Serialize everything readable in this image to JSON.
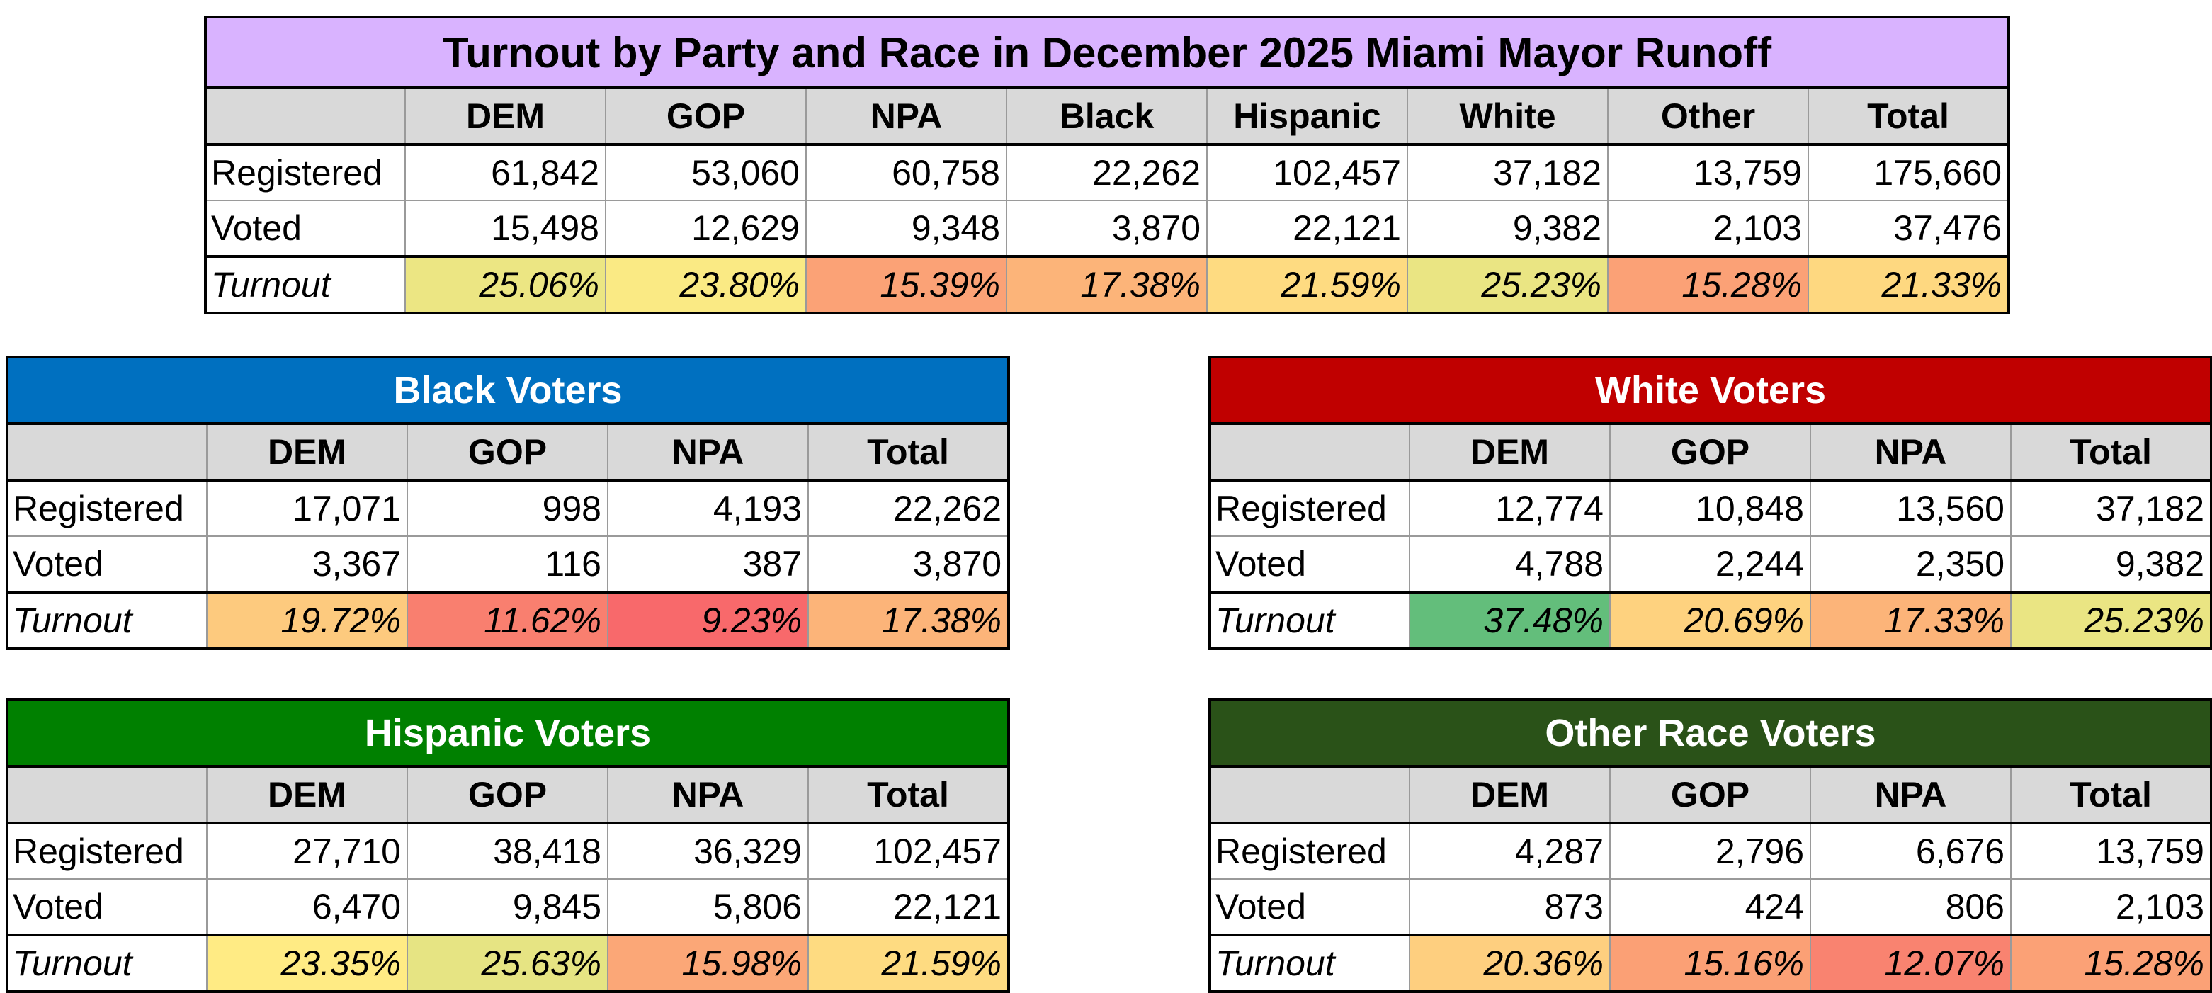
{
  "colors": {
    "main_title_bg": "#d9b3ff",
    "black_title_bg": "#0070c0",
    "white_title_bg": "#c00000",
    "hispanic_title_bg": "#008000",
    "other_title_bg": "#2a5218",
    "header_bg": "#d9d9d9",
    "scale_low": "#f8696b",
    "scale_mid": "#ffeb84",
    "scale_high": "#63be7b"
  },
  "chart_data": [
    {
      "type": "table",
      "title": "Turnout by Party and Race in December 2025 Miami Mayor Runoff",
      "columns": [
        "DEM",
        "GOP",
        "NPA",
        "Black",
        "Hispanic",
        "White",
        "Other",
        "Total"
      ],
      "rows": [
        {
          "label": "Registered",
          "values": [
            "61,842",
            "53,060",
            "60,758",
            "22,262",
            "102,457",
            "37,182",
            "13,759",
            "175,660"
          ]
        },
        {
          "label": "Voted",
          "values": [
            "15,498",
            "12,629",
            "9,348",
            "3,870",
            "22,121",
            "9,382",
            "2,103",
            "37,476"
          ]
        },
        {
          "label": "Turnout",
          "values": [
            "25.06%",
            "23.80%",
            "15.39%",
            "17.38%",
            "21.59%",
            "25.23%",
            "15.28%",
            "21.33%"
          ],
          "numeric": [
            25.06,
            23.8,
            15.39,
            17.38,
            21.59,
            25.23,
            15.28,
            21.33
          ]
        }
      ]
    },
    {
      "type": "table",
      "title": "Black Voters",
      "columns": [
        "DEM",
        "GOP",
        "NPA",
        "Total"
      ],
      "rows": [
        {
          "label": "Registered",
          "values": [
            "17,071",
            "998",
            "4,193",
            "22,262"
          ]
        },
        {
          "label": "Voted",
          "values": [
            "3,367",
            "116",
            "387",
            "3,870"
          ]
        },
        {
          "label": "Turnout",
          "values": [
            "19.72%",
            "11.62%",
            "9.23%",
            "17.38%"
          ],
          "numeric": [
            19.72,
            11.62,
            9.23,
            17.38
          ]
        }
      ]
    },
    {
      "type": "table",
      "title": "White Voters",
      "columns": [
        "DEM",
        "GOP",
        "NPA",
        "Total"
      ],
      "rows": [
        {
          "label": "Registered",
          "values": [
            "12,774",
            "10,848",
            "13,560",
            "37,182"
          ]
        },
        {
          "label": "Voted",
          "values": [
            "4,788",
            "2,244",
            "2,350",
            "9,382"
          ]
        },
        {
          "label": "Turnout",
          "values": [
            "37.48%",
            "20.69%",
            "17.33%",
            "25.23%"
          ],
          "numeric": [
            37.48,
            20.69,
            17.33,
            25.23
          ]
        }
      ]
    },
    {
      "type": "table",
      "title": "Hispanic Voters",
      "columns": [
        "DEM",
        "GOP",
        "NPA",
        "Total"
      ],
      "rows": [
        {
          "label": "Registered",
          "values": [
            "27,710",
            "38,418",
            "36,329",
            "102,457"
          ]
        },
        {
          "label": "Voted",
          "values": [
            "6,470",
            "9,845",
            "5,806",
            "22,121"
          ]
        },
        {
          "label": "Turnout",
          "values": [
            "23.35%",
            "25.63%",
            "15.98%",
            "21.59%"
          ],
          "numeric": [
            23.35,
            25.63,
            15.98,
            21.59
          ]
        }
      ]
    },
    {
      "type": "table",
      "title": "Other Race Voters",
      "columns": [
        "DEM",
        "GOP",
        "NPA",
        "Total"
      ],
      "rows": [
        {
          "label": "Registered",
          "values": [
            "4,287",
            "2,796",
            "6,676",
            "13,759"
          ]
        },
        {
          "label": "Voted",
          "values": [
            "873",
            "424",
            "806",
            "2,103"
          ]
        },
        {
          "label": "Turnout",
          "values": [
            "20.36%",
            "15.16%",
            "12.07%",
            "15.28%"
          ],
          "numeric": [
            20.36,
            15.16,
            12.07,
            15.28
          ]
        }
      ]
    }
  ]
}
